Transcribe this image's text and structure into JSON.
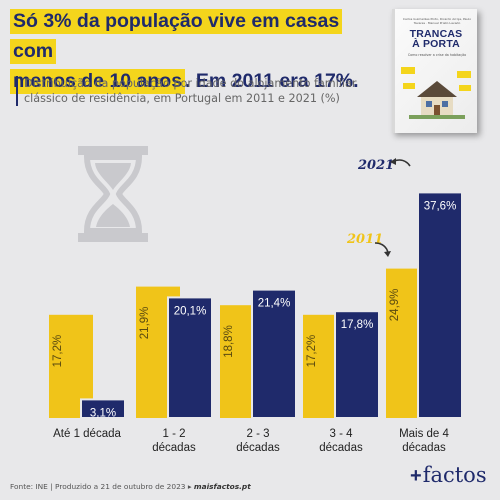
{
  "headline": {
    "line1": "Só 3% da população vive em casas com",
    "line2_hl": "menos de 10 anos",
    "line2_rest": ". Em 2011 era 17%."
  },
  "subtitle": "Distribuição da população por idade do alojamento familiar clássico de residência, em Portugal em 2011 e 2021 (%)",
  "book": {
    "authors": "Carlos Guimarães Pinto, Ricardo Arroja, Paulo Tavares · Manuel Prieto Lavado",
    "title_line1": "TRANCAS",
    "title_line2": "À PORTA",
    "subtitle": "Como resolver a crise da habitação"
  },
  "colors": {
    "y2011": "#f0c419",
    "y2021": "#1f2a6b",
    "background": "#e8e8ea"
  },
  "chart_data": {
    "type": "bar",
    "categories": [
      "Até 1 década",
      "1 - 2 décadas",
      "2 - 3 décadas",
      "3 - 4 décadas",
      "Mais de 4 décadas"
    ],
    "category_lines": [
      [
        "Até 1 década"
      ],
      [
        "1 - 2",
        "décadas"
      ],
      [
        "2 - 3",
        "décadas"
      ],
      [
        "3 - 4",
        "décadas"
      ],
      [
        "Mais de 4",
        "décadas"
      ]
    ],
    "series": [
      {
        "name": "2011",
        "values": [
          17.2,
          21.9,
          18.8,
          17.2,
          24.9
        ],
        "labels": [
          "17,2%",
          "21,9%",
          "18,8%",
          "17,2%",
          "24,9%"
        ]
      },
      {
        "name": "2021",
        "values": [
          3.1,
          20.1,
          21.4,
          17.8,
          37.6
        ],
        "labels": [
          "3,1%",
          "20,1%",
          "21,4%",
          "17,8%",
          "37,6%"
        ]
      }
    ],
    "ylim": [
      0,
      40
    ]
  },
  "footer": {
    "source": "Fonte: INE | Produzido a 21 de outubro de 2023 ▸",
    "site": "maisfactos.pt"
  },
  "logo": {
    "plus": "+",
    "name": "factos"
  },
  "icons": {
    "hourglass": "hourglass-icon",
    "arrow": "curved-arrow-icon"
  }
}
